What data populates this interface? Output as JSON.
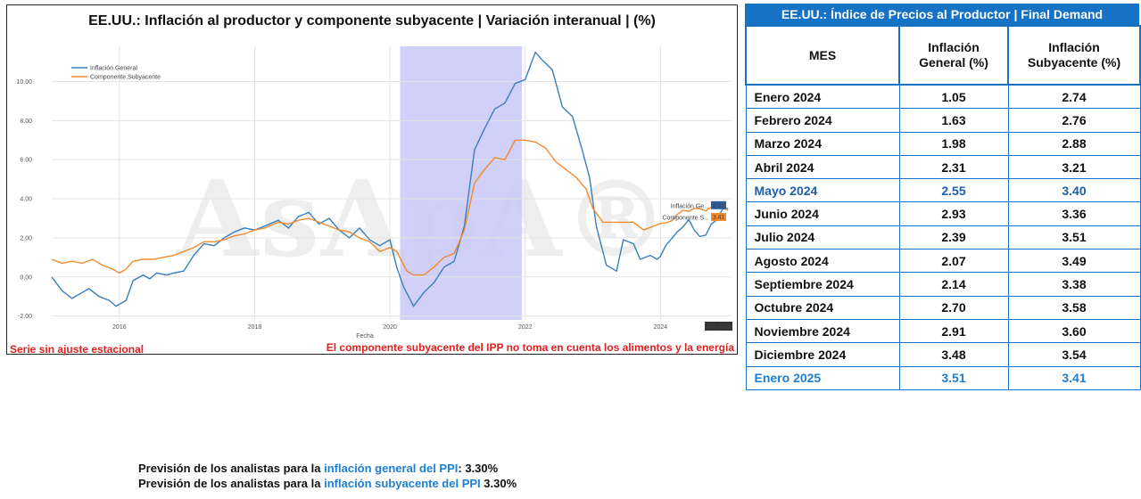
{
  "chart": {
    "title": "EE.UU.: Inflación al productor y componente subyacente | Variación interanual | (%)",
    "watermark": "AsApA®",
    "note_left": "Serie sin ajuste estacional",
    "note_right": "El componente subyacente del IPP no toma en cuenta los alimentos y la energía",
    "end_label": "Jan 2025",
    "end_value_general": "3.51",
    "end_value_subyacente": "3.41",
    "end_name_general": "Inflación Ge...",
    "end_name_subyacente": "Componente S..."
  },
  "chart_data": {
    "type": "line",
    "xlabel": "Fecha",
    "ylabel": "",
    "xlim": [
      2015.0,
      2025.05
    ],
    "ylim": [
      -2.2,
      11.8
    ],
    "yticks": [
      -2,
      0,
      2,
      4,
      6,
      8,
      10
    ],
    "ytick_labels": [
      "-2.00",
      "0.00",
      "2.00",
      "4.00",
      "6.00",
      "8.00",
      "10.00"
    ],
    "xticks": [
      2016,
      2018,
      2020,
      2022,
      2024
    ],
    "xtick_labels": [
      "2016",
      "2018",
      "2020",
      "2022",
      "2024"
    ],
    "grid": true,
    "legend": "top-left",
    "shaded_region": [
      2020.15,
      2021.95
    ],
    "colors": {
      "general": "#3a7fbd",
      "subyacente": "#f08a2e",
      "shade": "#c8c8f8"
    },
    "series": [
      {
        "name": "Inflación.General",
        "points": [
          [
            2015.0,
            0.0
          ],
          [
            2015.15,
            -0.7
          ],
          [
            2015.3,
            -1.1
          ],
          [
            2015.45,
            -0.8
          ],
          [
            2015.55,
            -0.6
          ],
          [
            2015.7,
            -1.0
          ],
          [
            2015.85,
            -1.2
          ],
          [
            2015.95,
            -1.5
          ],
          [
            2016.1,
            -1.2
          ],
          [
            2016.2,
            -0.2
          ],
          [
            2016.35,
            0.1
          ],
          [
            2016.45,
            -0.1
          ],
          [
            2016.55,
            0.2
          ],
          [
            2016.7,
            0.1
          ],
          [
            2016.8,
            0.2
          ],
          [
            2016.95,
            0.3
          ],
          [
            2017.1,
            1.1
          ],
          [
            2017.25,
            1.7
          ],
          [
            2017.4,
            1.6
          ],
          [
            2017.55,
            2.0
          ],
          [
            2017.7,
            2.3
          ],
          [
            2017.85,
            2.5
          ],
          [
            2018.0,
            2.4
          ],
          [
            2018.15,
            2.6
          ],
          [
            2018.35,
            2.9
          ],
          [
            2018.5,
            2.5
          ],
          [
            2018.65,
            3.1
          ],
          [
            2018.8,
            3.3
          ],
          [
            2018.95,
            2.7
          ],
          [
            2019.1,
            3.0
          ],
          [
            2019.25,
            2.4
          ],
          [
            2019.4,
            2.0
          ],
          [
            2019.55,
            2.5
          ],
          [
            2019.7,
            1.9
          ],
          [
            2019.85,
            1.6
          ],
          [
            2020.0,
            1.9
          ],
          [
            2020.1,
            0.5
          ],
          [
            2020.2,
            -0.5
          ],
          [
            2020.35,
            -1.5
          ],
          [
            2020.5,
            -0.8
          ],
          [
            2020.65,
            -0.3
          ],
          [
            2020.8,
            0.5
          ],
          [
            2020.95,
            0.8
          ],
          [
            2021.1,
            2.6
          ],
          [
            2021.25,
            6.5
          ],
          [
            2021.4,
            7.6
          ],
          [
            2021.55,
            8.6
          ],
          [
            2021.7,
            8.9
          ],
          [
            2021.85,
            9.9
          ],
          [
            2022.0,
            10.1
          ],
          [
            2022.15,
            11.5
          ],
          [
            2022.25,
            11.1
          ],
          [
            2022.4,
            10.6
          ],
          [
            2022.55,
            8.7
          ],
          [
            2022.7,
            8.2
          ],
          [
            2022.85,
            6.4
          ],
          [
            2022.95,
            5.1
          ],
          [
            2023.05,
            2.6
          ],
          [
            2023.2,
            0.6
          ],
          [
            2023.35,
            0.3
          ],
          [
            2023.45,
            1.9
          ],
          [
            2023.6,
            1.7
          ],
          [
            2023.7,
            0.9
          ],
          [
            2023.85,
            1.1
          ],
          [
            2023.95,
            0.9
          ],
          [
            2024.0,
            1.05
          ],
          [
            2024.08,
            1.63
          ],
          [
            2024.17,
            1.98
          ],
          [
            2024.25,
            2.31
          ],
          [
            2024.33,
            2.55
          ],
          [
            2024.42,
            2.93
          ],
          [
            2024.5,
            2.39
          ],
          [
            2024.58,
            2.07
          ],
          [
            2024.67,
            2.14
          ],
          [
            2024.75,
            2.7
          ],
          [
            2024.83,
            2.91
          ],
          [
            2024.92,
            3.48
          ],
          [
            2025.0,
            3.51
          ]
        ]
      },
      {
        "name": "Componente.Subyacente",
        "points": [
          [
            2015.0,
            0.9
          ],
          [
            2015.15,
            0.7
          ],
          [
            2015.3,
            0.8
          ],
          [
            2015.45,
            0.7
          ],
          [
            2015.6,
            0.9
          ],
          [
            2015.75,
            0.6
          ],
          [
            2015.9,
            0.4
          ],
          [
            2016.0,
            0.2
          ],
          [
            2016.1,
            0.4
          ],
          [
            2016.2,
            0.8
          ],
          [
            2016.35,
            0.9
          ],
          [
            2016.5,
            0.9
          ],
          [
            2016.65,
            1.0
          ],
          [
            2016.8,
            1.1
          ],
          [
            2016.95,
            1.3
          ],
          [
            2017.1,
            1.5
          ],
          [
            2017.25,
            1.8
          ],
          [
            2017.4,
            1.8
          ],
          [
            2017.55,
            1.9
          ],
          [
            2017.7,
            2.1
          ],
          [
            2017.85,
            2.2
          ],
          [
            2018.0,
            2.4
          ],
          [
            2018.15,
            2.5
          ],
          [
            2018.35,
            2.8
          ],
          [
            2018.5,
            2.7
          ],
          [
            2018.65,
            2.9
          ],
          [
            2018.8,
            3.0
          ],
          [
            2018.95,
            2.8
          ],
          [
            2019.1,
            2.6
          ],
          [
            2019.25,
            2.4
          ],
          [
            2019.4,
            2.3
          ],
          [
            2019.55,
            2.0
          ],
          [
            2019.7,
            1.8
          ],
          [
            2019.85,
            1.3
          ],
          [
            2020.0,
            1.5
          ],
          [
            2020.1,
            1.3
          ],
          [
            2020.25,
            0.3
          ],
          [
            2020.35,
            0.1
          ],
          [
            2020.5,
            0.1
          ],
          [
            2020.65,
            0.5
          ],
          [
            2020.8,
            1.0
          ],
          [
            2020.95,
            1.2
          ],
          [
            2021.1,
            2.4
          ],
          [
            2021.25,
            4.8
          ],
          [
            2021.4,
            5.5
          ],
          [
            2021.55,
            6.1
          ],
          [
            2021.7,
            6.0
          ],
          [
            2021.85,
            7.0
          ],
          [
            2022.0,
            7.0
          ],
          [
            2022.15,
            6.9
          ],
          [
            2022.3,
            6.6
          ],
          [
            2022.45,
            5.9
          ],
          [
            2022.6,
            5.5
          ],
          [
            2022.75,
            5.1
          ],
          [
            2022.9,
            4.5
          ],
          [
            2023.0,
            3.5
          ],
          [
            2023.15,
            2.8
          ],
          [
            2023.3,
            2.8
          ],
          [
            2023.45,
            2.8
          ],
          [
            2023.6,
            2.8
          ],
          [
            2023.75,
            2.4
          ],
          [
            2023.9,
            2.6
          ],
          [
            2024.0,
            2.74
          ],
          [
            2024.08,
            2.76
          ],
          [
            2024.17,
            2.88
          ],
          [
            2024.25,
            3.21
          ],
          [
            2024.33,
            3.4
          ],
          [
            2024.42,
            3.36
          ],
          [
            2024.5,
            3.51
          ],
          [
            2024.58,
            3.49
          ],
          [
            2024.67,
            3.38
          ],
          [
            2024.75,
            3.58
          ],
          [
            2024.83,
            3.6
          ],
          [
            2024.92,
            3.54
          ],
          [
            2025.0,
            3.41
          ]
        ]
      }
    ]
  },
  "table": {
    "title": "EE.UU.: Índice de Precios al Productor | Final Demand",
    "headers": {
      "mes": "MES",
      "general_1": "Inflación",
      "general_2": "General (%)",
      "sub_1": "Inflación",
      "sub_2": "Subyacente (%)"
    },
    "rows": [
      {
        "mes": "Enero 2024",
        "general": "1.05",
        "sub": "2.74"
      },
      {
        "mes": "Febrero 2024",
        "general": "1.63",
        "sub": "2.76"
      },
      {
        "mes": "Marzo 2024",
        "general": "1.98",
        "sub": "2.88"
      },
      {
        "mes": "Abril 2024",
        "general": "2.31",
        "sub": "3.21"
      },
      {
        "mes": "Mayo 2024",
        "general": "2.55",
        "sub": "3.40"
      },
      {
        "mes": "Junio 2024",
        "general": "2.93",
        "sub": "3.36"
      },
      {
        "mes": "Julio 2024",
        "general": "2.39",
        "sub": "3.51"
      },
      {
        "mes": "Agosto 2024",
        "general": "2.07",
        "sub": "3.49"
      },
      {
        "mes": "Septiembre 2024",
        "general": "2.14",
        "sub": "3.38"
      },
      {
        "mes": "Octubre 2024",
        "general": "2.70",
        "sub": "3.58"
      },
      {
        "mes": "Noviembre 2024",
        "general": "2.91",
        "sub": "3.60"
      },
      {
        "mes": "Diciembre 2024",
        "general": "3.48",
        "sub": "3.54"
      },
      {
        "mes": "Enero 2025",
        "general": "3.51",
        "sub": "3.41"
      }
    ]
  },
  "forecast": {
    "line1_prefix": "Previsión de los analistas para la ",
    "line1_highlight": "inflación general del PPI",
    "line1_suffix": ": 3.30%",
    "line2_prefix": "Previsión de los analistas para la ",
    "line2_highlight": "inflación subyacente del PPI",
    "line2_suffix": " 3.30%"
  }
}
